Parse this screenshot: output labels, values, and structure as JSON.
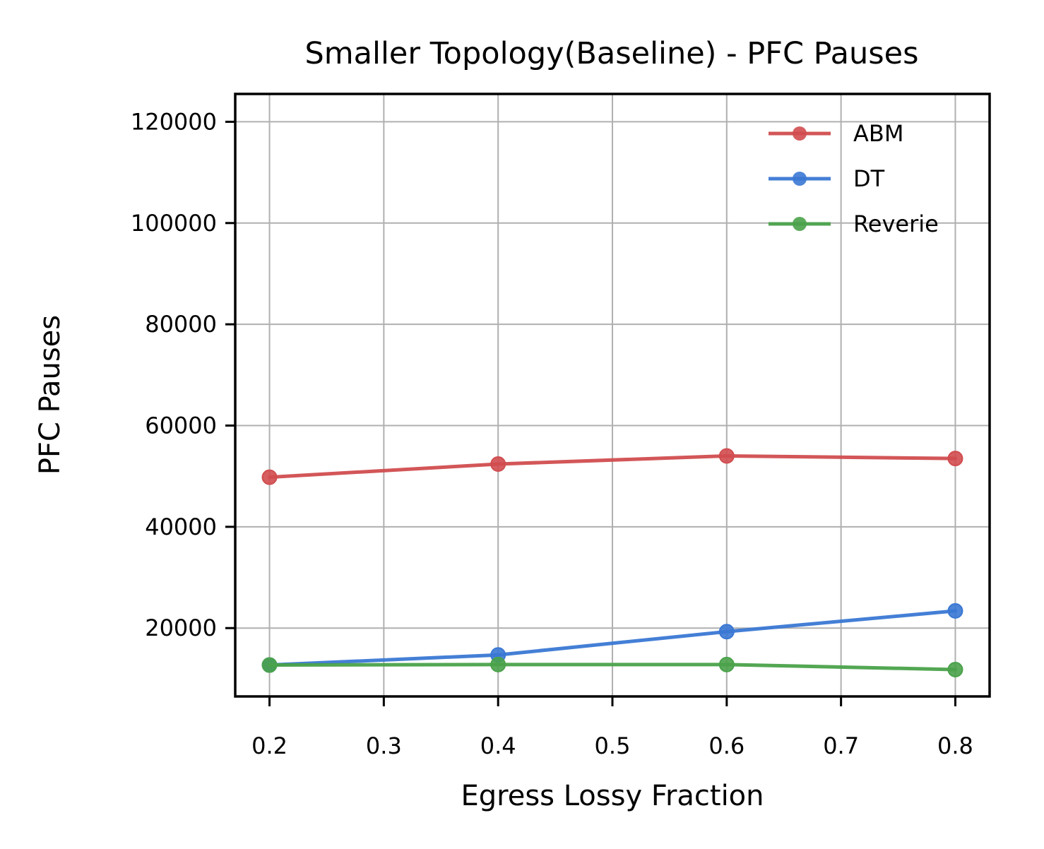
{
  "chart_data": {
    "type": "line",
    "title": "Smaller Topology(Baseline) - PFC Pauses",
    "xlabel": "Egress Lossy Fraction",
    "ylabel": "PFC Pauses",
    "x": [
      0.2,
      0.4,
      0.6,
      0.8
    ],
    "xlim": [
      0.17,
      0.83
    ],
    "ylim": [
      6500,
      125500
    ],
    "x_ticks": [
      0.2,
      0.3,
      0.4,
      0.5,
      0.6,
      0.7,
      0.8
    ],
    "x_tick_labels": [
      "0.2",
      "0.3",
      "0.4",
      "0.5",
      "0.6",
      "0.7",
      "0.8"
    ],
    "y_ticks": [
      20000,
      40000,
      60000,
      80000,
      100000,
      120000
    ],
    "y_tick_labels": [
      "20000",
      "40000",
      "60000",
      "80000",
      "100000",
      "120000"
    ],
    "grid": true,
    "legend_position": "top-right",
    "series": [
      {
        "name": "ABM",
        "color": "#d14d4f",
        "values": [
          49800,
          52400,
          54000,
          53500
        ]
      },
      {
        "name": "DT",
        "color": "#3a78d4",
        "values": [
          12700,
          14700,
          19300,
          23400
        ]
      },
      {
        "name": "Reverie",
        "color": "#4aa24a",
        "values": [
          12700,
          12800,
          12800,
          11800
        ]
      }
    ]
  }
}
